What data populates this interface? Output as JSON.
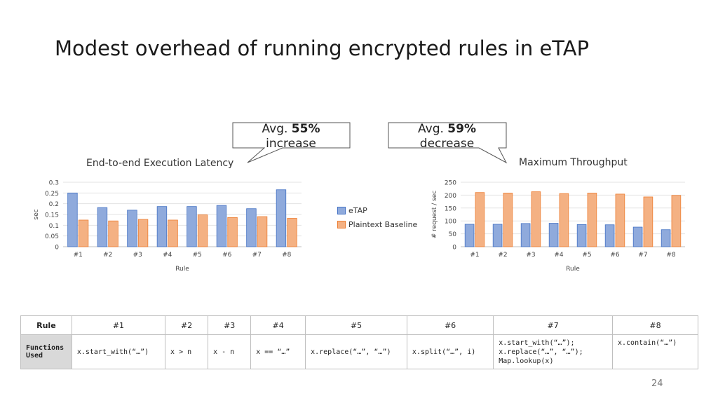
{
  "slide": {
    "title": "Modest overhead of running encrypted rules in eTAP",
    "page_number": "24"
  },
  "callouts": [
    {
      "prefix": "Avg. ",
      "value": "55%",
      "line2": "increase"
    },
    {
      "prefix": "Avg. ",
      "value": "59%",
      "line2": "decrease"
    }
  ],
  "chart_data": [
    {
      "type": "bar",
      "title": "End-to-end Execution Latency",
      "xlabel": "Rule",
      "ylabel": "sec",
      "categories": [
        "#1",
        "#2",
        "#3",
        "#4",
        "#5",
        "#6",
        "#7",
        "#8"
      ],
      "yticks": [
        "0",
        "0.05",
        "0.1",
        "0.15",
        "0.2",
        "0.25",
        "0.3"
      ],
      "ylim": [
        0,
        0.3
      ],
      "grid": true,
      "legend_position": "right",
      "series": [
        {
          "name": "eTAP",
          "color": "#8faadc",
          "values": [
            0.25,
            0.182,
            0.17,
            0.187,
            0.187,
            0.192,
            0.177,
            0.265
          ]
        },
        {
          "name": "Plaintext Baseline",
          "color": "#f4b183",
          "values": [
            0.124,
            0.12,
            0.127,
            0.124,
            0.148,
            0.136,
            0.14,
            0.132
          ]
        }
      ]
    },
    {
      "type": "bar",
      "title": "Maximum Throughput",
      "xlabel": "Rule",
      "ylabel": "# request / sec",
      "categories": [
        "#1",
        "#2",
        "#3",
        "#4",
        "#5",
        "#6",
        "#7",
        "#8"
      ],
      "yticks": [
        "0",
        "50",
        "100",
        "150",
        "200",
        "250"
      ],
      "ylim": [
        0,
        250
      ],
      "grid": true,
      "series": [
        {
          "color": "#8faadc",
          "values": [
            87,
            87,
            90,
            91,
            86,
            85,
            76,
            66
          ]
        },
        {
          "color": "#f4b183",
          "values": [
            210,
            208,
            213,
            206,
            208,
            204,
            193,
            199
          ]
        }
      ]
    }
  ],
  "table": {
    "row1_header": "Rule",
    "row2_header": "Functions Used",
    "rules": [
      "#1",
      "#2",
      "#3",
      "#4",
      "#5",
      "#6",
      "#7",
      "#8"
    ],
    "functions": [
      "x.start_with(“…”)",
      "x > n",
      "x - n",
      "x == “…”",
      "x.replace(“…”, “…”)",
      "x.split(“…”, i)",
      "x.start_with(“…”);\nx.replace(“…”, “…”);\nMap.lookup(x)",
      "x.contain(“…”)"
    ]
  }
}
